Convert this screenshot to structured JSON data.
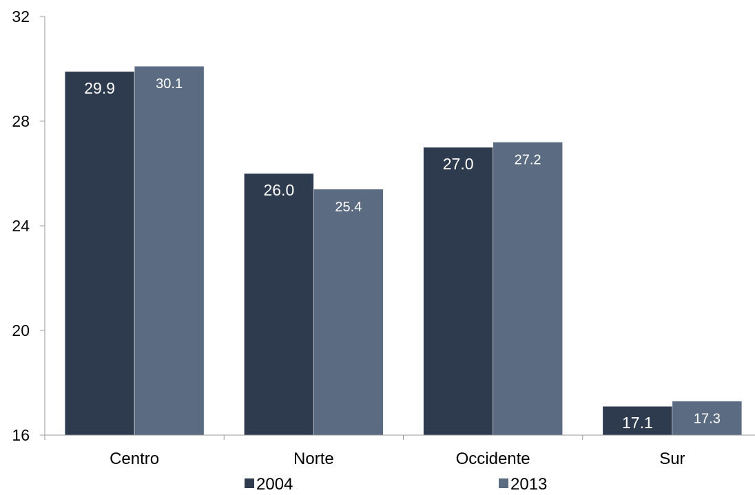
{
  "chart_data": {
    "type": "bar",
    "title": "",
    "xlabel": "",
    "ylabel": "",
    "categories": [
      "Centro",
      "Norte",
      "Occidente",
      "Sur"
    ],
    "series": [
      {
        "name": "2004",
        "values": [
          29.9,
          26.0,
          27.0,
          17.1
        ],
        "labels": [
          "29.9",
          "26.0",
          "27.0",
          "17.1"
        ],
        "color": "#2e3b4e"
      },
      {
        "name": "2013",
        "values": [
          30.1,
          25.4,
          27.2,
          17.3
        ],
        "labels": [
          "30.1",
          "25.4",
          "27.2",
          "17.3"
        ],
        "color": "#5b6b82"
      }
    ],
    "ylim": [
      16,
      32
    ],
    "yticks": [
      16,
      20,
      24,
      28,
      32
    ],
    "ytick_labels": [
      "16",
      "20",
      "24",
      "28",
      "32"
    ],
    "grid": false,
    "legend_position": "bottom",
    "data_label_color": "#ffffff",
    "axis_color": "#999999",
    "text_color": "#000000"
  }
}
